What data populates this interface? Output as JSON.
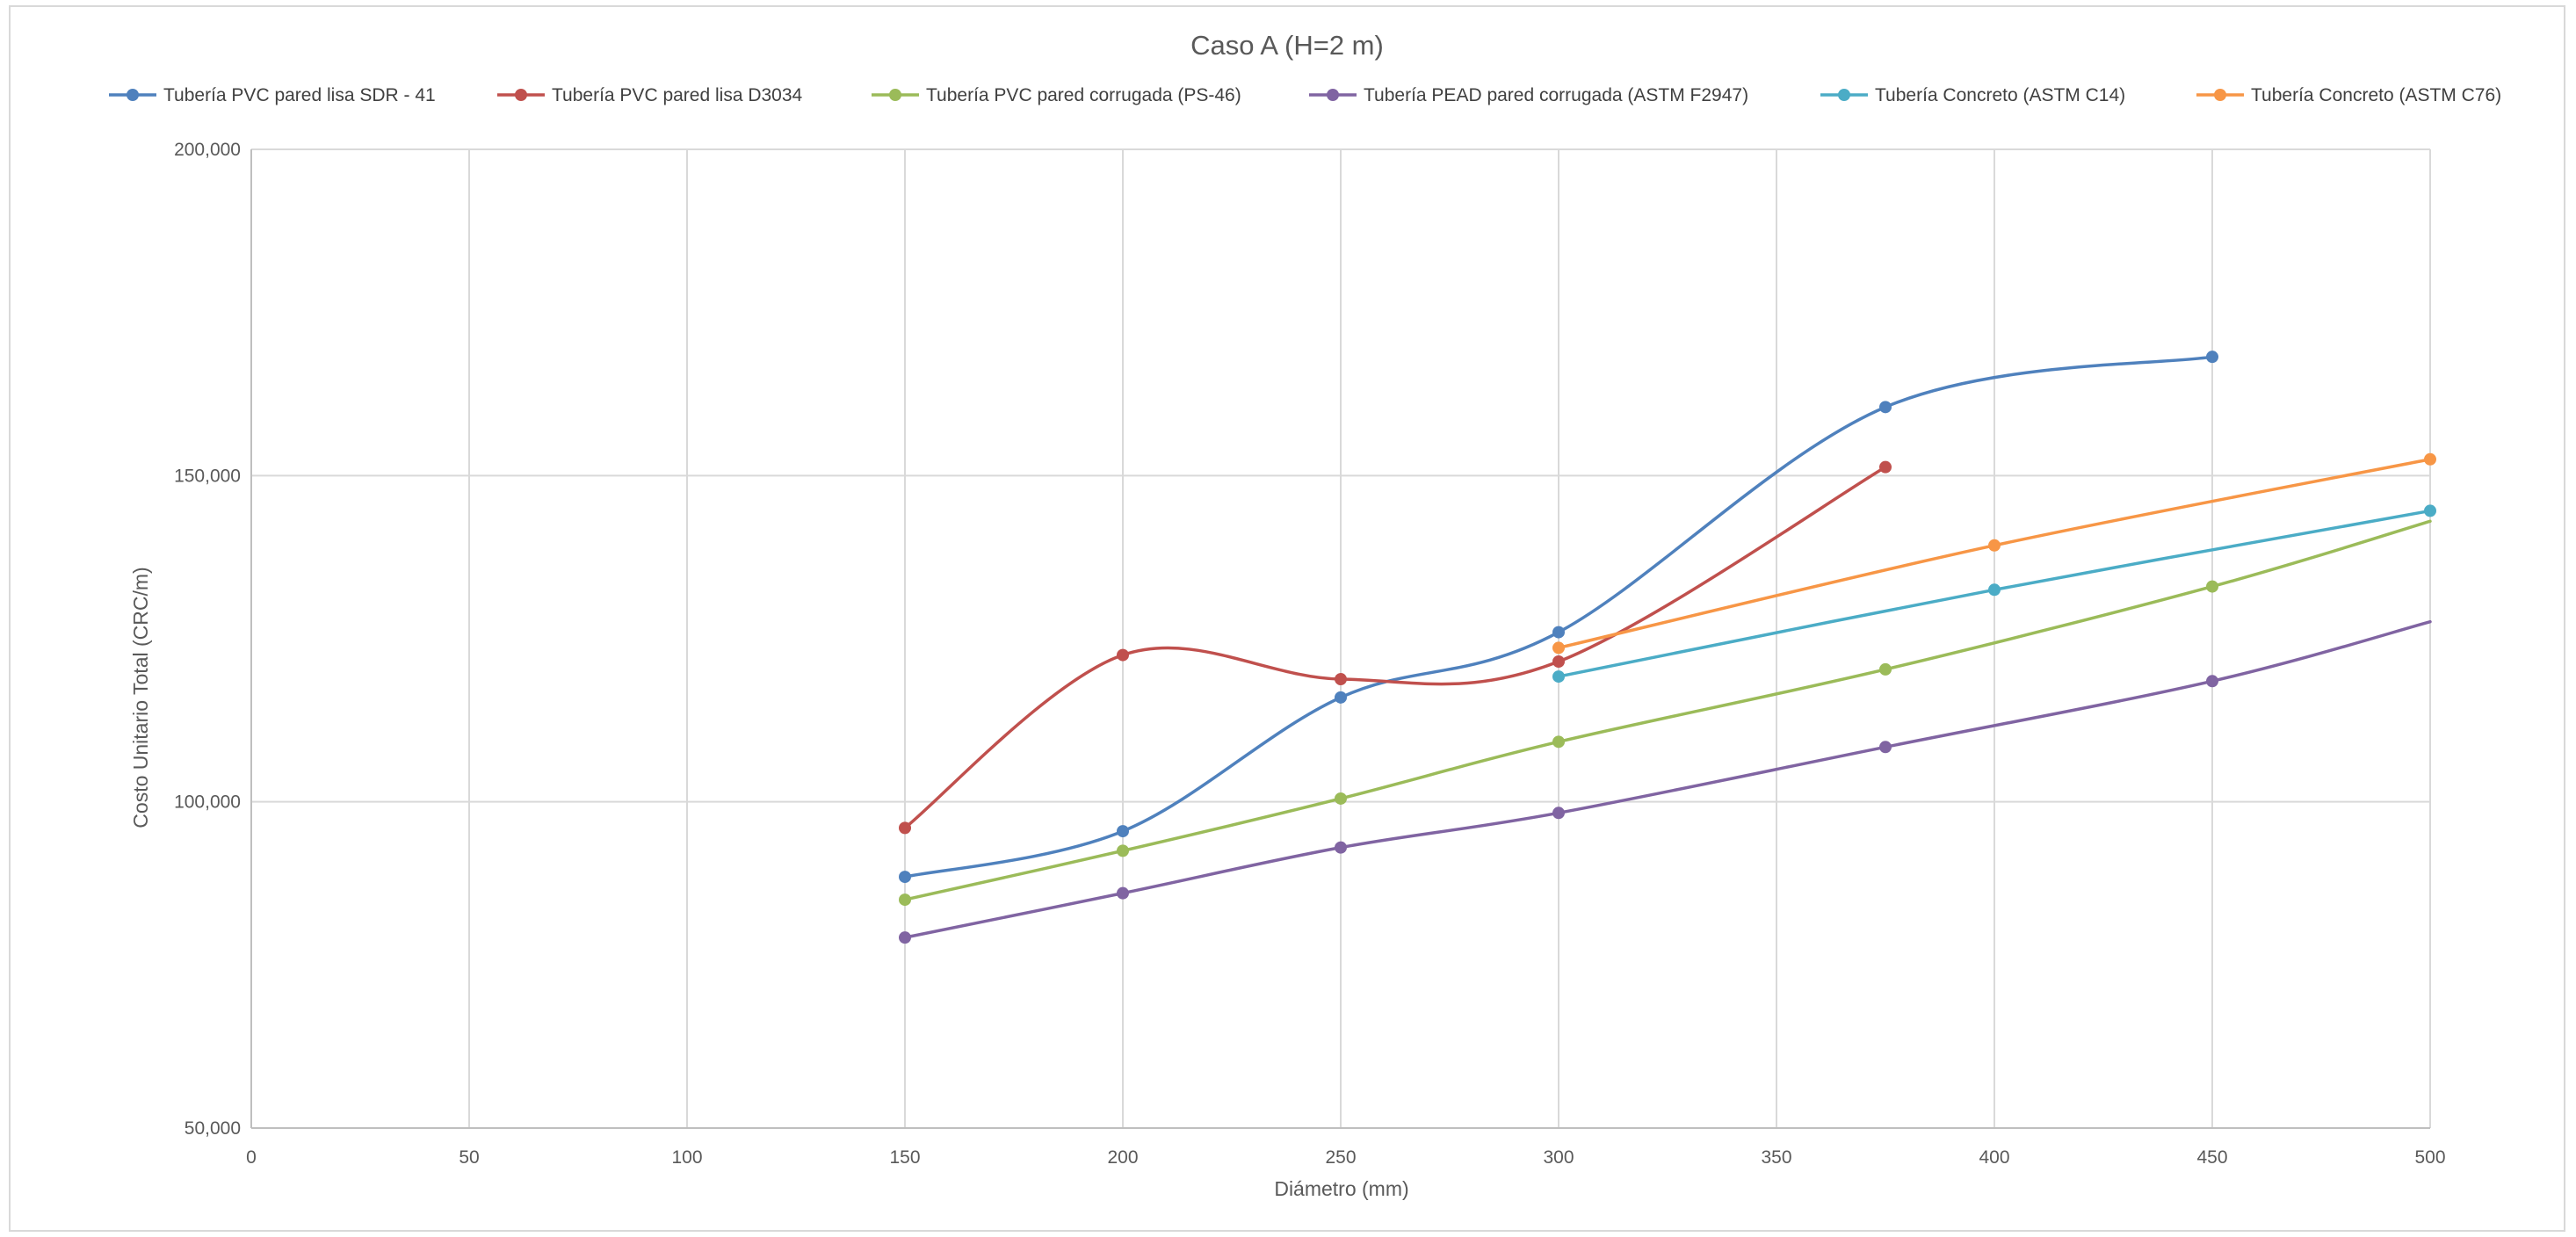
{
  "chart_data": {
    "type": "line",
    "title": "Caso A (H=2 m)",
    "xlabel": "Diámetro (mm)",
    "ylabel": "Costo Unitario Total (CRC/m)",
    "xlim": [
      0,
      500
    ],
    "ylim": [
      50000,
      200000
    ],
    "x_ticks": [
      0,
      50,
      100,
      150,
      200,
      250,
      300,
      350,
      400,
      450,
      500
    ],
    "x_tick_labels": [
      "0",
      "50",
      "100",
      "150",
      "200",
      "250",
      "300",
      "350",
      "400",
      "450",
      "500"
    ],
    "y_ticks": [
      50000,
      100000,
      150000,
      200000
    ],
    "y_tick_labels": [
      "50,000",
      "100,000",
      "150,000",
      "200,000"
    ],
    "grid": true,
    "smooth": true,
    "legend_position": "top",
    "series": [
      {
        "name": "Tubería PVC pared lisa SDR - 41",
        "color": "#4f81bd",
        "points": [
          [
            150,
            88500
          ],
          [
            200,
            95500
          ],
          [
            250,
            116000
          ],
          [
            300,
            126000
          ],
          [
            375,
            160500
          ],
          [
            450,
            168200
          ]
        ],
        "extend_to": null
      },
      {
        "name": "Tubería PVC pared lisa D3034",
        "color": "#c0504d",
        "points": [
          [
            150,
            96000
          ],
          [
            200,
            122500
          ],
          [
            250,
            118800
          ],
          [
            300,
            121500
          ],
          [
            375,
            151300
          ]
        ],
        "extend_to": null
      },
      {
        "name": "Tubería PVC pared corrugada (PS-46)",
        "color": "#9bbb59",
        "points": [
          [
            150,
            85000
          ],
          [
            200,
            92500
          ],
          [
            250,
            100500
          ],
          [
            300,
            109200
          ],
          [
            375,
            120300
          ],
          [
            450,
            133000
          ]
        ],
        "extend_to": [
          500,
          143000
        ]
      },
      {
        "name": "Tubería PEAD pared corrugada (ASTM F2947)",
        "color": "#8064a2",
        "points": [
          [
            150,
            79200
          ],
          [
            200,
            86000
          ],
          [
            250,
            93000
          ],
          [
            300,
            98300
          ],
          [
            375,
            108400
          ],
          [
            450,
            118500
          ]
        ],
        "extend_to": [
          500,
          127600
        ]
      },
      {
        "name": "Tubería Concreto (ASTM C14)",
        "color": "#4bacc6",
        "points": [
          [
            300,
            119200
          ],
          [
            400,
            132500
          ],
          [
            500,
            144600
          ]
        ],
        "extend_to": null
      },
      {
        "name": "Tubería Concreto (ASTM C76)",
        "color": "#f79646",
        "points": [
          [
            300,
            123600
          ],
          [
            400,
            139300
          ],
          [
            500,
            152500
          ]
        ],
        "extend_to": null
      }
    ]
  }
}
